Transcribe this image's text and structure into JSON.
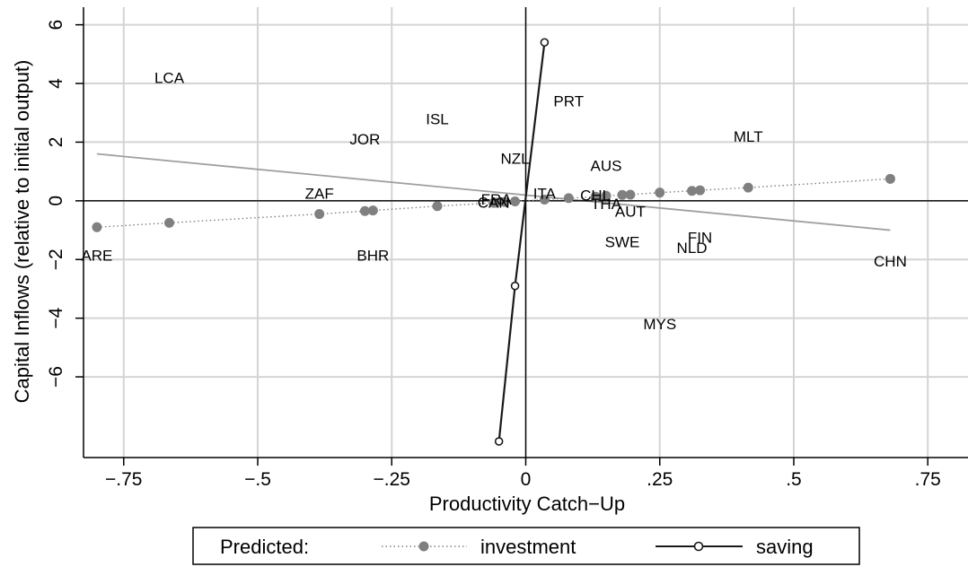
{
  "chart_data": {
    "type": "scatter",
    "title": "",
    "xlabel": "Productivity Catch−Up",
    "ylabel": "Capital Inflows (relative to initial output)",
    "xlim": [
      -0.825,
      0.825
    ],
    "ylim": [
      -8.75,
      6.6
    ],
    "x_ticks": [
      -0.75,
      -0.5,
      -0.25,
      0,
      0.25,
      0.5,
      0.75
    ],
    "x_tick_labels": [
      "−.75",
      "−.5",
      "−.25",
      "0",
      ".25",
      ".5",
      ".75"
    ],
    "y_ticks": [
      -6,
      -4,
      -2,
      0,
      2,
      4,
      6
    ],
    "y_tick_labels": [
      "−6",
      "−4",
      "−2",
      "0",
      "2",
      "4",
      "6"
    ],
    "grid": true,
    "legend_position": "bottom",
    "legend": {
      "title": "Predicted:",
      "entries": [
        "investment",
        "saving"
      ]
    },
    "colors": {
      "investment": "#808080",
      "saving": "#1a1a1a",
      "fit": "#a0a0a0",
      "grid": "#d4d4d4"
    },
    "countries": [
      {
        "label": "LCA",
        "x": -0.665,
        "y": 4.2
      },
      {
        "label": "ISL",
        "x": -0.165,
        "y": 2.8
      },
      {
        "label": "PRT",
        "x": 0.08,
        "y": 3.4
      },
      {
        "label": "JOR",
        "x": -0.3,
        "y": 2.1
      },
      {
        "label": "MLT",
        "x": 0.415,
        "y": 2.2
      },
      {
        "label": "NZL",
        "x": -0.02,
        "y": 1.45
      },
      {
        "label": "AUS",
        "x": 0.15,
        "y": 1.2
      },
      {
        "label": "ZAF",
        "x": -0.385,
        "y": 0.25
      },
      {
        "label": "ITA",
        "x": 0.035,
        "y": 0.25
      },
      {
        "label": "CHL",
        "x": 0.13,
        "y": 0.2
      },
      {
        "label": "THA",
        "x": 0.15,
        "y": -0.1
      },
      {
        "label": "AUT",
        "x": 0.195,
        "y": -0.35
      },
      {
        "label": "CAN",
        "x": -0.06,
        "y": -0.05
      },
      {
        "label": "FRA",
        "x": -0.055,
        "y": 0.05
      },
      {
        "label": "SWE",
        "x": 0.18,
        "y": -1.4
      },
      {
        "label": "FIN",
        "x": 0.325,
        "y": -1.25
      },
      {
        "label": "NLD",
        "x": 0.31,
        "y": -1.6
      },
      {
        "label": "ARE",
        "x": -0.8,
        "y": -1.85
      },
      {
        "label": "BHR",
        "x": -0.285,
        "y": -1.85
      },
      {
        "label": "CHN",
        "x": 0.68,
        "y": -2.05
      },
      {
        "label": "MYS",
        "x": 0.25,
        "y": -4.2
      }
    ],
    "series": [
      {
        "name": "investment",
        "style": "dotted",
        "points": [
          {
            "x": -0.8,
            "y": -0.9
          },
          {
            "x": -0.665,
            "y": -0.75
          },
          {
            "x": -0.385,
            "y": -0.45
          },
          {
            "x": -0.3,
            "y": -0.35
          },
          {
            "x": -0.285,
            "y": -0.33
          },
          {
            "x": -0.165,
            "y": -0.18
          },
          {
            "x": -0.06,
            "y": -0.07
          },
          {
            "x": -0.055,
            "y": -0.06
          },
          {
            "x": -0.04,
            "y": -0.04
          },
          {
            "x": -0.02,
            "y": -0.02
          },
          {
            "x": 0.035,
            "y": 0.04
          },
          {
            "x": 0.08,
            "y": 0.09
          },
          {
            "x": 0.13,
            "y": 0.14
          },
          {
            "x": 0.15,
            "y": 0.17
          },
          {
            "x": 0.18,
            "y": 0.2
          },
          {
            "x": 0.195,
            "y": 0.21
          },
          {
            "x": 0.25,
            "y": 0.28
          },
          {
            "x": 0.31,
            "y": 0.34
          },
          {
            "x": 0.325,
            "y": 0.36
          },
          {
            "x": 0.415,
            "y": 0.45
          },
          {
            "x": 0.68,
            "y": 0.75
          }
        ]
      },
      {
        "name": "saving",
        "style": "solid",
        "points": [
          {
            "x": -0.05,
            "y": -8.2
          },
          {
            "x": -0.02,
            "y": -2.9
          },
          {
            "x": 0.035,
            "y": 5.4
          }
        ]
      }
    ],
    "fit_line": {
      "x": [
        -0.8,
        0.68
      ],
      "y": [
        1.6,
        -1.0
      ]
    }
  }
}
